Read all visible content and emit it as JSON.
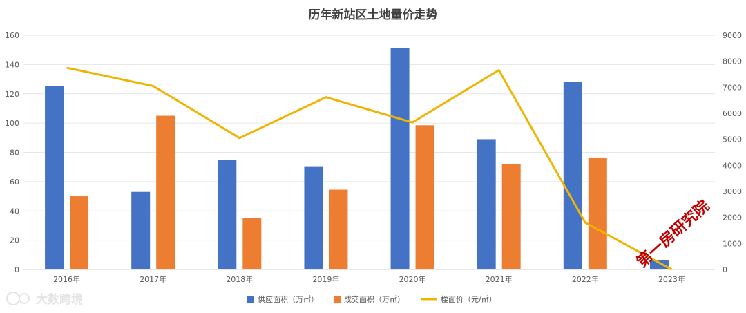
{
  "chart_data": {
    "type": "bar",
    "title": "历年新站区土地量价走势",
    "categories": [
      "2016年",
      "2017年",
      "2018年",
      "2019年",
      "2020年",
      "2021年",
      "2022年",
      "2023年"
    ],
    "series": [
      {
        "name": "供应面积（万㎡）",
        "type": "bar",
        "axis": "left",
        "color": "#4472c4",
        "values": [
          125.5,
          53,
          75,
          70.5,
          151.5,
          89,
          128,
          6.5
        ]
      },
      {
        "name": "成交面积（万㎡）",
        "type": "bar",
        "axis": "left",
        "color": "#ed7d31",
        "values": [
          50,
          105,
          35,
          54.5,
          98.5,
          72,
          76.5,
          0
        ]
      },
      {
        "name": "楼面价（元/㎡）",
        "type": "line",
        "axis": "right",
        "color": "#f0b400",
        "values": [
          7750,
          7050,
          5050,
          6620,
          5650,
          7660,
          1800,
          0
        ]
      }
    ],
    "y_left": {
      "min": 0,
      "max": 160,
      "ticks": [
        0,
        20,
        40,
        60,
        80,
        100,
        120,
        140,
        160
      ]
    },
    "y_right": {
      "min": 0,
      "max": 9000,
      "ticks": [
        0,
        1000,
        2000,
        3000,
        4000,
        5000,
        6000,
        7000,
        8000,
        9000
      ]
    },
    "grid": true,
    "legend_position": "bottom"
  },
  "watermarks": {
    "research": "第一房研究院",
    "logo": "大数跨境"
  }
}
